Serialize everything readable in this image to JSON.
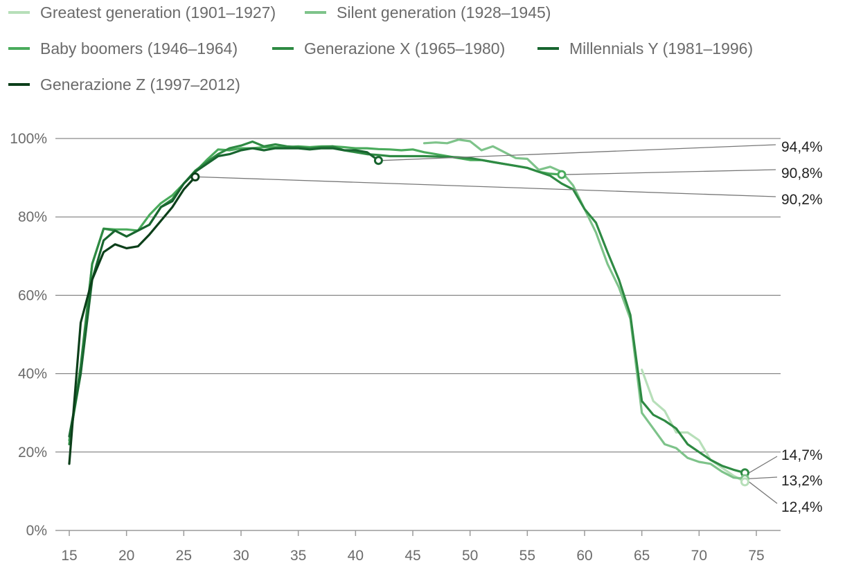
{
  "chart_data": {
    "type": "line",
    "title": "",
    "xlabel": "",
    "ylabel": "",
    "xlim": [
      15,
      75
    ],
    "ylim": [
      0,
      100
    ],
    "x_ticks": [
      15,
      20,
      25,
      30,
      35,
      40,
      45,
      50,
      55,
      60,
      65,
      70,
      75
    ],
    "x_tick_labels": [
      "15",
      "20",
      "25",
      "30",
      "35",
      "40",
      "45",
      "50",
      "55",
      "60",
      "65",
      "70",
      "75"
    ],
    "y_ticks": [
      0,
      20,
      40,
      60,
      80,
      100
    ],
    "y_tick_labels": [
      "0%",
      "20%",
      "40%",
      "60%",
      "80%",
      "100%"
    ],
    "grid": "horizontal",
    "legend_position": "top",
    "series": [
      {
        "name": "Greatest generation (1901–1927)",
        "color": "#b7dfb9",
        "points": [
          [
            65,
            41
          ],
          [
            66,
            33
          ],
          [
            67,
            30.5
          ],
          [
            68,
            25
          ],
          [
            69,
            25
          ],
          [
            70,
            23
          ],
          [
            71,
            18
          ],
          [
            72,
            16
          ],
          [
            73,
            14
          ],
          [
            74,
            12.4
          ]
        ]
      },
      {
        "name": "Silent generation (1928–1945)",
        "color": "#7ec38a",
        "points": [
          [
            46,
            98.8
          ],
          [
            47,
            99
          ],
          [
            48,
            98.8
          ],
          [
            49,
            99.7
          ],
          [
            50,
            99.3
          ],
          [
            51,
            97
          ],
          [
            52,
            98
          ],
          [
            53,
            96.5
          ],
          [
            54,
            95
          ],
          [
            55,
            94.8
          ],
          [
            56,
            92
          ],
          [
            57,
            92.8
          ],
          [
            58,
            91.5
          ],
          [
            59,
            88
          ],
          [
            60,
            82
          ],
          [
            61,
            76
          ],
          [
            62,
            68
          ],
          [
            63,
            62
          ],
          [
            64,
            54
          ],
          [
            65,
            30
          ],
          [
            66,
            26
          ],
          [
            67,
            22
          ],
          [
            68,
            21
          ],
          [
            69,
            18.5
          ],
          [
            70,
            17.5
          ],
          [
            71,
            17
          ],
          [
            72,
            15
          ],
          [
            73,
            13.5
          ],
          [
            74,
            13.2
          ]
        ]
      },
      {
        "name": "Baby boomers (1946–1964)",
        "color": "#4aab5c",
        "points": [
          [
            15,
            23
          ],
          [
            16,
            40
          ],
          [
            17,
            68
          ],
          [
            18,
            77
          ],
          [
            19,
            76.8
          ],
          [
            20,
            76.8
          ],
          [
            21,
            76.5
          ],
          [
            22,
            80.5
          ],
          [
            23,
            83.5
          ],
          [
            24,
            85.5
          ],
          [
            25,
            88.5
          ],
          [
            26,
            91.5
          ],
          [
            27,
            94.5
          ],
          [
            28,
            97.2
          ],
          [
            29,
            97
          ],
          [
            30,
            97.5
          ],
          [
            31,
            97.5
          ],
          [
            32,
            97.8
          ],
          [
            33,
            97.8
          ],
          [
            34,
            97.8
          ],
          [
            35,
            98
          ],
          [
            36,
            97.8
          ],
          [
            37,
            98
          ],
          [
            38,
            98
          ],
          [
            39,
            97.8
          ],
          [
            40,
            97.5
          ],
          [
            41,
            97.5
          ],
          [
            42,
            97.3
          ],
          [
            43,
            97.2
          ],
          [
            44,
            97
          ],
          [
            45,
            97.2
          ],
          [
            46,
            96.5
          ],
          [
            47,
            96
          ],
          [
            48,
            95.5
          ],
          [
            49,
            95
          ],
          [
            50,
            94.5
          ],
          [
            51,
            94.5
          ],
          [
            52,
            94
          ],
          [
            53,
            93.5
          ],
          [
            54,
            93
          ],
          [
            55,
            92.5
          ],
          [
            56,
            91.5
          ],
          [
            57,
            91
          ],
          [
            58,
            90.8
          ]
        ]
      },
      {
        "name": "Generazione X (1965–1980)",
        "color": "#2e8a43",
        "points": [
          [
            15,
            22
          ],
          [
            16,
            42
          ],
          [
            17,
            68
          ],
          [
            18,
            77
          ],
          [
            19,
            76.5
          ],
          [
            20,
            75
          ],
          [
            21,
            76.5
          ],
          [
            22,
            78
          ],
          [
            23,
            82.5
          ],
          [
            24,
            84.5
          ],
          [
            25,
            88.5
          ],
          [
            26,
            91.8
          ],
          [
            27,
            94
          ],
          [
            28,
            96
          ],
          [
            29,
            97.5
          ],
          [
            30,
            98.2
          ],
          [
            31,
            99.2
          ],
          [
            32,
            98
          ],
          [
            33,
            98.5
          ],
          [
            34,
            98
          ],
          [
            35,
            97.8
          ],
          [
            36,
            97.5
          ],
          [
            37,
            97.8
          ],
          [
            38,
            98
          ],
          [
            39,
            97
          ],
          [
            40,
            96.5
          ],
          [
            41,
            96
          ],
          [
            42,
            95.8
          ],
          [
            43,
            95.5
          ],
          [
            44,
            95.5
          ],
          [
            45,
            95.5
          ],
          [
            46,
            95.5
          ],
          [
            47,
            95.4
          ],
          [
            48,
            95.3
          ],
          [
            49,
            95.2
          ],
          [
            50,
            95
          ],
          [
            51,
            94.5
          ],
          [
            52,
            94
          ],
          [
            53,
            93.5
          ],
          [
            54,
            93
          ],
          [
            55,
            92.5
          ],
          [
            56,
            91.5
          ],
          [
            57,
            90.5
          ],
          [
            58,
            88.5
          ],
          [
            59,
            87
          ],
          [
            60,
            82
          ],
          [
            61,
            78.5
          ],
          [
            62,
            71
          ],
          [
            63,
            64
          ],
          [
            64,
            55
          ],
          [
            65,
            33
          ],
          [
            66,
            29.5
          ],
          [
            67,
            28
          ],
          [
            68,
            26
          ],
          [
            69,
            22
          ],
          [
            70,
            20
          ],
          [
            71,
            18
          ],
          [
            72,
            16.5
          ],
          [
            73,
            15.5
          ],
          [
            74,
            14.7
          ]
        ]
      },
      {
        "name": "Millennials Y (1981–1996)",
        "color": "#18652f",
        "points": [
          [
            15,
            24
          ],
          [
            16,
            40
          ],
          [
            17,
            64
          ],
          [
            18,
            74
          ],
          [
            19,
            76.5
          ],
          [
            20,
            75
          ],
          [
            21,
            76.5
          ],
          [
            22,
            78
          ],
          [
            23,
            82.5
          ],
          [
            24,
            84
          ],
          [
            25,
            88.5
          ],
          [
            26,
            91.5
          ],
          [
            27,
            93.5
          ],
          [
            28,
            95.5
          ],
          [
            29,
            96
          ],
          [
            30,
            97
          ],
          [
            31,
            97.5
          ],
          [
            32,
            97
          ],
          [
            33,
            97.5
          ],
          [
            34,
            97.5
          ],
          [
            35,
            97.5
          ],
          [
            36,
            97.2
          ],
          [
            37,
            97.5
          ],
          [
            38,
            97.5
          ],
          [
            39,
            97
          ],
          [
            40,
            97
          ],
          [
            41,
            96.5
          ],
          [
            42,
            94.4
          ]
        ]
      },
      {
        "name": "Generazione Z (1997–2012)",
        "color": "#0c3f1a",
        "points": [
          [
            15,
            17
          ],
          [
            16,
            53
          ],
          [
            17,
            64
          ],
          [
            18,
            71
          ],
          [
            19,
            73
          ],
          [
            20,
            72
          ],
          [
            21,
            72.5
          ],
          [
            22,
            75.5
          ],
          [
            23,
            79
          ],
          [
            24,
            82.5
          ],
          [
            25,
            87
          ],
          [
            26,
            90.2
          ]
        ]
      }
    ],
    "annotations": [
      {
        "label": "94,4%",
        "series": "Millennials Y (1981–1996)",
        "x": 42,
        "y": 94.4
      },
      {
        "label": "90,8%",
        "series": "Baby boomers (1946–1964)",
        "x": 58,
        "y": 90.8
      },
      {
        "label": "90,2%",
        "series": "Generazione Z (1997–2012)",
        "x": 26,
        "y": 90.2
      },
      {
        "label": "14,7%",
        "series": "Generazione X (1965–1980)",
        "x": 74,
        "y": 14.7
      },
      {
        "label": "13,2%",
        "series": "Silent generation (1928–1945)",
        "x": 74,
        "y": 13.2
      },
      {
        "label": "12,4%",
        "series": "Greatest generation (1901–1927)",
        "x": 74,
        "y": 12.4
      }
    ]
  }
}
